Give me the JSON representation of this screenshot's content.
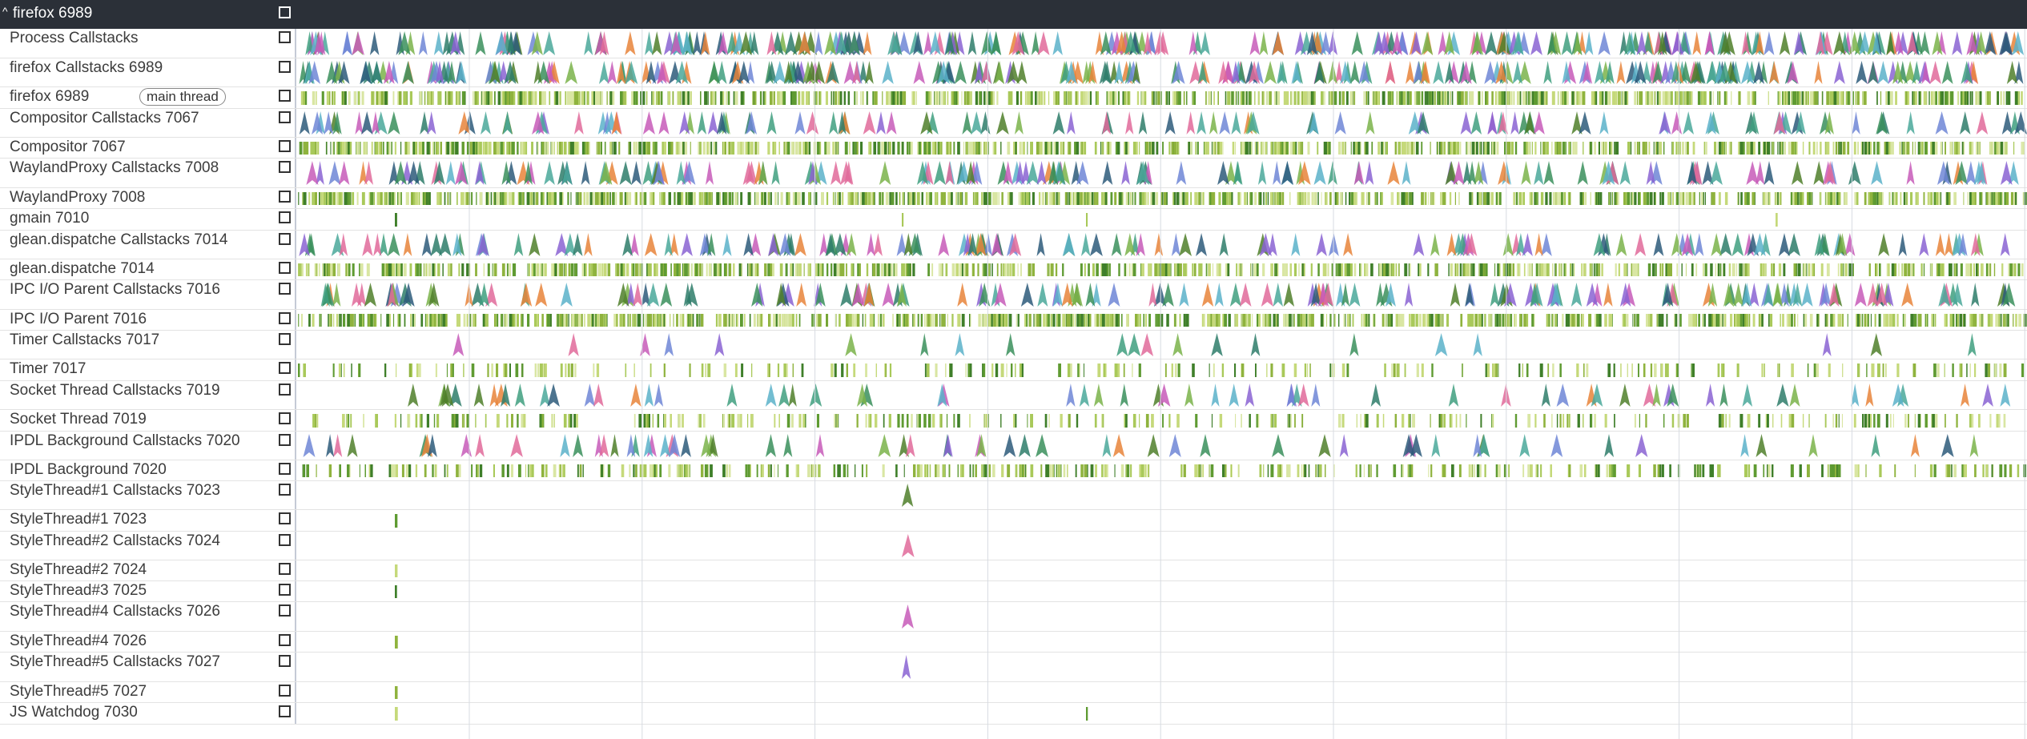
{
  "process": {
    "title": "firefox 6989",
    "expanded": true
  },
  "tracks": [
    {
      "name": "Process Callstacks",
      "kind": "callstack",
      "density": 1.0
    },
    {
      "name": "firefox Callstacks 6989",
      "kind": "callstack",
      "density": 0.92
    },
    {
      "name": "firefox 6989",
      "kind": "slices",
      "density": 0.95,
      "tag": "main thread"
    },
    {
      "name": "Compositor Callstacks 7067",
      "kind": "callstack",
      "density": 0.45
    },
    {
      "name": "Compositor 7067",
      "kind": "slices",
      "density": 0.9
    },
    {
      "name": "WaylandProxy Callstacks 7008",
      "kind": "callstack",
      "density": 0.6
    },
    {
      "name": "WaylandProxy 7008",
      "kind": "slices",
      "density": 0.95
    },
    {
      "name": "gmain 7010",
      "kind": "slices",
      "density": 0.004
    },
    {
      "name": "glean.dispatche Callstacks 7014",
      "kind": "callstack",
      "density": 0.55
    },
    {
      "name": "glean.dispatche 7014",
      "kind": "slices",
      "density": 0.8
    },
    {
      "name": "IPC I/O Parent Callstacks 7016",
      "kind": "callstack",
      "density": 0.6
    },
    {
      "name": "IPC I/O Parent 7016",
      "kind": "slices",
      "density": 0.9
    },
    {
      "name": "Timer Callstacks 7017",
      "kind": "callstack",
      "density": 0.08
    },
    {
      "name": "Timer 7017",
      "kind": "slices",
      "density": 0.25
    },
    {
      "name": "Socket Thread Callstacks 7019",
      "kind": "callstack",
      "density": 0.25
    },
    {
      "name": "Socket Thread 7019",
      "kind": "slices",
      "density": 0.3
    },
    {
      "name": "IPDL Background Callstacks 7020",
      "kind": "callstack",
      "density": 0.25
    },
    {
      "name": "IPDL Background 7020",
      "kind": "slices",
      "density": 0.4
    },
    {
      "name": "StyleThread#1 Callstacks 7023",
      "kind": "callstack",
      "density": 0.001
    },
    {
      "name": "StyleThread#1 7023",
      "kind": "slices",
      "density": 0.001
    },
    {
      "name": "StyleThread#2 Callstacks 7024",
      "kind": "callstack",
      "density": 0.001
    },
    {
      "name": "StyleThread#2 7024",
      "kind": "slices",
      "density": 0.001
    },
    {
      "name": "StyleThread#3 7025",
      "kind": "slices",
      "density": 0.001
    },
    {
      "name": "StyleThread#4 Callstacks 7026",
      "kind": "callstack",
      "density": 0.001
    },
    {
      "name": "StyleThread#4 7026",
      "kind": "slices",
      "density": 0.001
    },
    {
      "name": "StyleThread#5 Callstacks 7027",
      "kind": "callstack",
      "density": 0.001
    },
    {
      "name": "StyleThread#5 7027",
      "kind": "slices",
      "density": 0.001
    },
    {
      "name": "JS Watchdog 7030",
      "kind": "slices",
      "density": 0.002
    }
  ],
  "colors": {
    "header_bg": "#2b3038",
    "grid": "#d7dbe2",
    "slice": [
      "#c5d97a",
      "#a9c95a",
      "#8fb33e",
      "#5f9b32",
      "#3f7f2a",
      "#d9e6a3"
    ],
    "callstack": [
      "#3a8f5c",
      "#2e7d6a",
      "#4aa89a",
      "#5ab1c9",
      "#6f86d6",
      "#8a63d2",
      "#c75ab8",
      "#e06a9a",
      "#e8843a",
      "#4f7f2a",
      "#2d5a7a",
      "#7ab34a",
      "#3f9f7f"
    ]
  }
}
